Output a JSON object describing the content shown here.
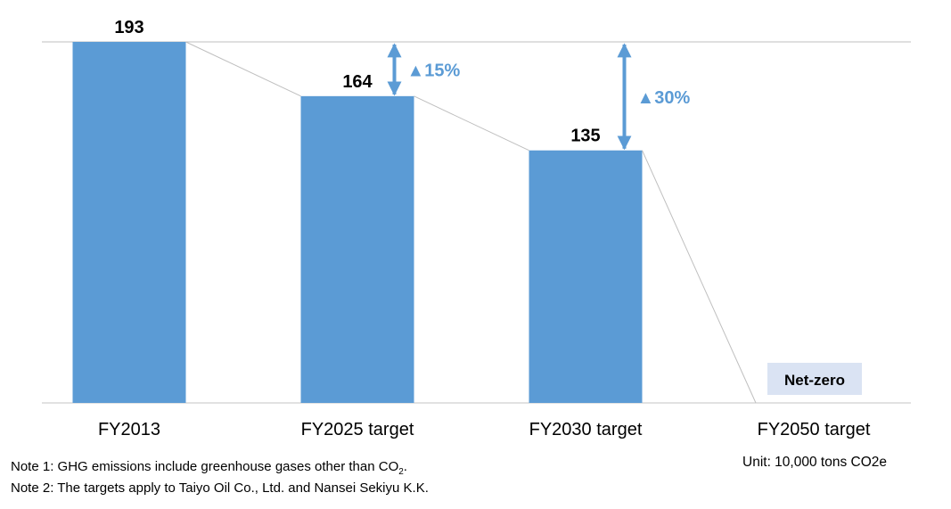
{
  "chart_data": {
    "type": "bar",
    "title": "",
    "categories": [
      "FY2013",
      "FY2025 target",
      "FY2030 target",
      "FY2050 target"
    ],
    "values": [
      193,
      164,
      135,
      0
    ],
    "value_labels": [
      "193",
      "164",
      "135",
      "Net-zero"
    ],
    "reductions": [
      {
        "from": "FY2013",
        "to": "FY2025 target",
        "label": "▲15%"
      },
      {
        "from": "FY2013",
        "to": "FY2030 target",
        "label": "▲30%"
      }
    ],
    "ylim": [
      0,
      193
    ],
    "xlabel": "",
    "ylabel": "",
    "grid": false,
    "unit": "Unit:  10,000 tons CO2e",
    "colors": {
      "bar": "#5B9BD5",
      "arrow": "#5B9BD5",
      "netzero_box": "#DAE3F3",
      "line": "#BFBFBF"
    }
  },
  "notes": {
    "note1_prefix": "Note 1: GHG emissions include greenhouse gases other than CO",
    "note1_sub": "2",
    "note1_suffix": ".",
    "note2": "Note 2: The targets apply to Taiyo Oil Co., Ltd. and Nansei Sekiyu K.K."
  }
}
